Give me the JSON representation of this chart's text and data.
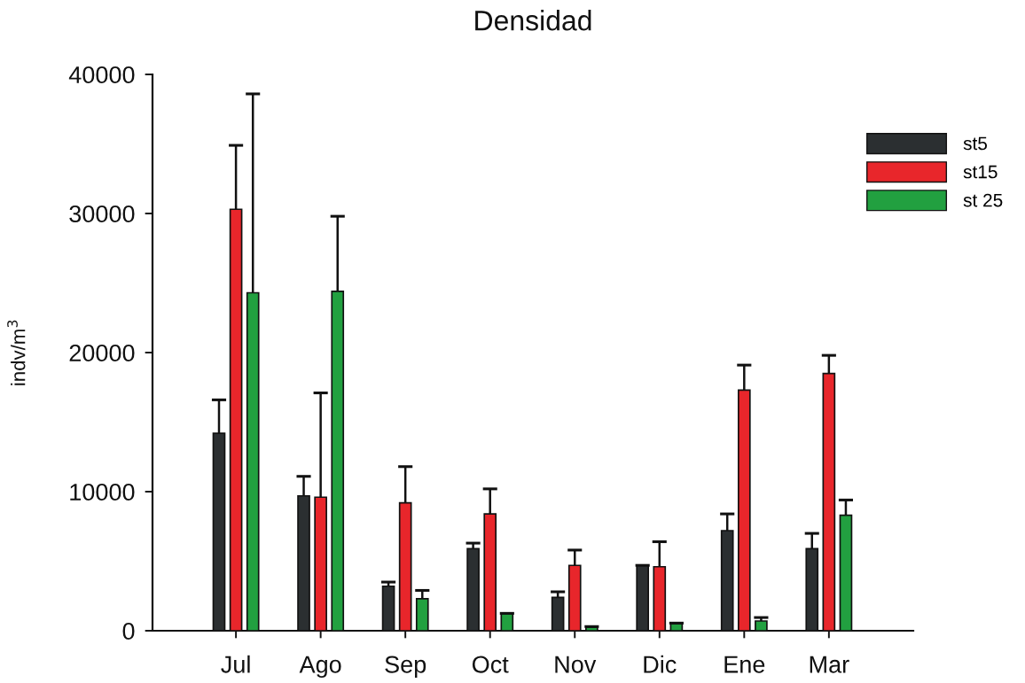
{
  "chart_data": {
    "type": "bar",
    "title": "Densidad",
    "ylabel": "indv/m$^{3}$",
    "categories": [
      "Jul",
      "Ago",
      "Sep",
      "Oct",
      "Nov",
      "Dic",
      "Ene",
      "Mar"
    ],
    "series": [
      {
        "name": "st5",
        "color": "#2b2f31",
        "values": [
          14200,
          9700,
          3200,
          5900,
          2400,
          4700,
          7200,
          5900
        ],
        "errors": [
          [
            14200,
            16600
          ],
          [
            9700,
            11100
          ],
          [
            3200,
            3500
          ],
          [
            5900,
            6300
          ],
          [
            2400,
            2800
          ],
          [
            4700,
            4700
          ],
          [
            7200,
            8400
          ],
          [
            5900,
            7000
          ]
        ]
      },
      {
        "name": "st15",
        "color": "#e8262b",
        "values": [
          30300,
          9600,
          9200,
          8400,
          4700,
          4600,
          17300,
          18500
        ],
        "errors": [
          [
            30300,
            34900
          ],
          [
            9600,
            17100
          ],
          [
            9200,
            11800
          ],
          [
            8400,
            10200
          ],
          [
            4700,
            5800
          ],
          [
            4600,
            6400
          ],
          [
            17300,
            19100
          ],
          [
            18500,
            19800
          ]
        ]
      },
      {
        "name": "st 25",
        "color": "#22a040",
        "values": [
          24300,
          24400,
          2300,
          1250,
          250,
          500,
          700,
          8300
        ],
        "errors": [
          [
            24300,
            38600
          ],
          [
            24400,
            29800
          ],
          [
            2300,
            2900
          ],
          [
            1250,
            1250
          ],
          [
            250,
            300
          ],
          [
            500,
            550
          ],
          [
            700,
            950
          ],
          [
            8300,
            9400
          ]
        ]
      }
    ],
    "ylim": [
      0,
      40000
    ],
    "yticks": [
      0,
      10000,
      20000,
      30000,
      40000
    ],
    "legend": "top right",
    "grid": false
  }
}
